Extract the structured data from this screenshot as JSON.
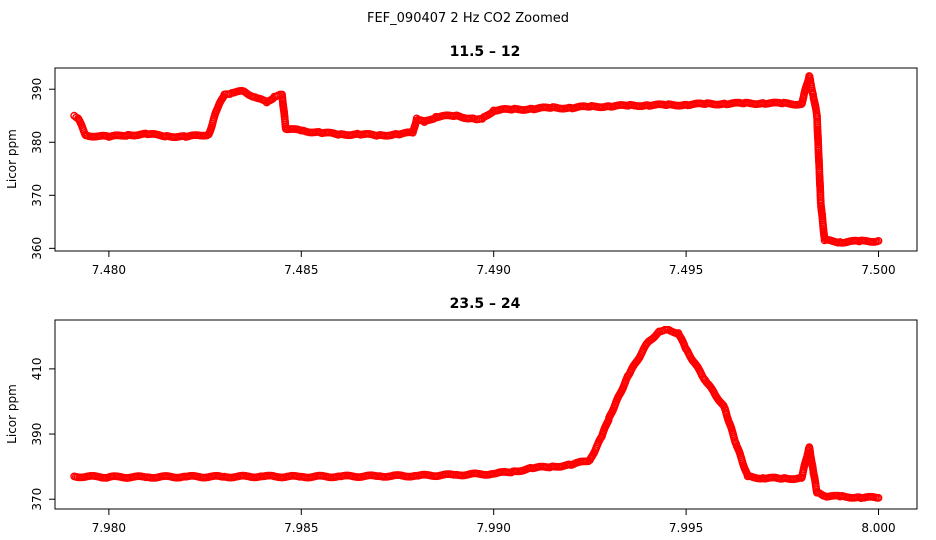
{
  "figure": {
    "title": "FEF_090407  2 Hz CO2 Zoomed"
  },
  "chart_data": [
    {
      "type": "scatter",
      "title": "11.5 – 12",
      "xlabel": "",
      "ylabel": "Licor ppm",
      "xlim": [
        7.4786,
        7.501
      ],
      "ylim": [
        359.5,
        394.0
      ],
      "xticks": [
        7.48,
        7.485,
        7.49,
        7.495,
        7.5
      ],
      "xtick_labels": [
        "7.480",
        "7.485",
        "7.490",
        "7.495",
        "7.500"
      ],
      "yticks": [
        360,
        370,
        380,
        390
      ],
      "ytick_labels": [
        "360",
        "370",
        "380",
        "390"
      ],
      "grid": false,
      "color": "#ff0000",
      "marker": "open-circle",
      "series": [
        {
          "x": [
            7.4791,
            7.4792,
            7.4794,
            7.48,
            7.4805,
            7.481,
            7.4815,
            7.482,
            7.4826,
            7.4828,
            7.483,
            7.4832,
            7.4835,
            7.4838,
            7.4841,
            7.4843,
            7.4845,
            7.4846,
            7.485,
            7.4855,
            7.486,
            7.4865,
            7.487,
            7.4875,
            7.4879,
            7.488,
            7.4882,
            7.4885,
            7.489,
            7.4895,
            7.4897,
            7.49,
            7.4905,
            7.491,
            7.4915,
            7.492,
            7.4925,
            7.493,
            7.4935,
            7.494,
            7.4945,
            7.495,
            7.4955,
            7.496,
            7.4965,
            7.497,
            7.4975,
            7.498,
            7.4982,
            7.4983,
            7.4984,
            7.4985,
            7.4986,
            7.499,
            7.4995,
            7.5
          ],
          "y": [
            385.0,
            384.5,
            381.3,
            381.0,
            381.4,
            381.5,
            381.2,
            381.0,
            381.5,
            386.0,
            389.0,
            389.3,
            389.6,
            388.5,
            387.5,
            388.6,
            389.0,
            382.5,
            382.2,
            381.8,
            381.5,
            381.5,
            381.3,
            381.5,
            381.8,
            384.5,
            383.8,
            384.8,
            385.0,
            384.4,
            384.4,
            386.0,
            386.2,
            386.3,
            386.5,
            386.5,
            386.7,
            386.8,
            386.9,
            387.0,
            387.0,
            387.1,
            387.2,
            387.3,
            387.3,
            387.4,
            387.3,
            387.2,
            392.5,
            389.0,
            385.0,
            368.5,
            361.5,
            361.2,
            361.3,
            361.4
          ]
        }
      ]
    },
    {
      "type": "scatter",
      "title": "23.5 – 24",
      "xlabel": "",
      "ylabel": "Licor ppm",
      "xlim": [
        7.9786,
        8.001
      ],
      "ylim": [
        367.0,
        425.0
      ],
      "xticks": [
        7.98,
        7.985,
        7.99,
        7.995,
        8.0
      ],
      "xtick_labels": [
        "7.980",
        "7.985",
        "7.990",
        "7.995",
        "8.000"
      ],
      "yticks": [
        370,
        390,
        410
      ],
      "ytick_labels": [
        "370",
        "390",
        "410"
      ],
      "grid": false,
      "color": "#ff0000",
      "marker": "open-circle",
      "series": [
        {
          "x": [
            7.9791,
            7.98,
            7.981,
            7.982,
            7.983,
            7.984,
            7.985,
            7.986,
            7.987,
            7.988,
            7.989,
            7.99,
            7.9905,
            7.991,
            7.9915,
            7.992,
            7.9925,
            7.9928,
            7.993,
            7.9935,
            7.994,
            7.9943,
            7.9945,
            7.9948,
            7.995,
            7.9955,
            7.996,
            7.9963,
            7.9966,
            7.997,
            7.9975,
            7.998,
            7.9982,
            7.9983,
            7.9984,
            7.9986,
            7.999,
            7.9995,
            8.0
          ],
          "y": [
            377.0,
            376.8,
            376.8,
            376.9,
            376.9,
            377.0,
            376.9,
            377.0,
            377.1,
            377.2,
            377.5,
            377.8,
            378.5,
            379.5,
            380.0,
            380.5,
            382.0,
            389.0,
            395.0,
            408.0,
            418.0,
            421.5,
            422.0,
            421.0,
            416.0,
            406.5,
            398.0,
            387.0,
            377.0,
            376.5,
            376.3,
            376.5,
            386.0,
            379.0,
            372.0,
            371.0,
            370.8,
            370.6,
            370.4
          ]
        }
      ]
    }
  ]
}
